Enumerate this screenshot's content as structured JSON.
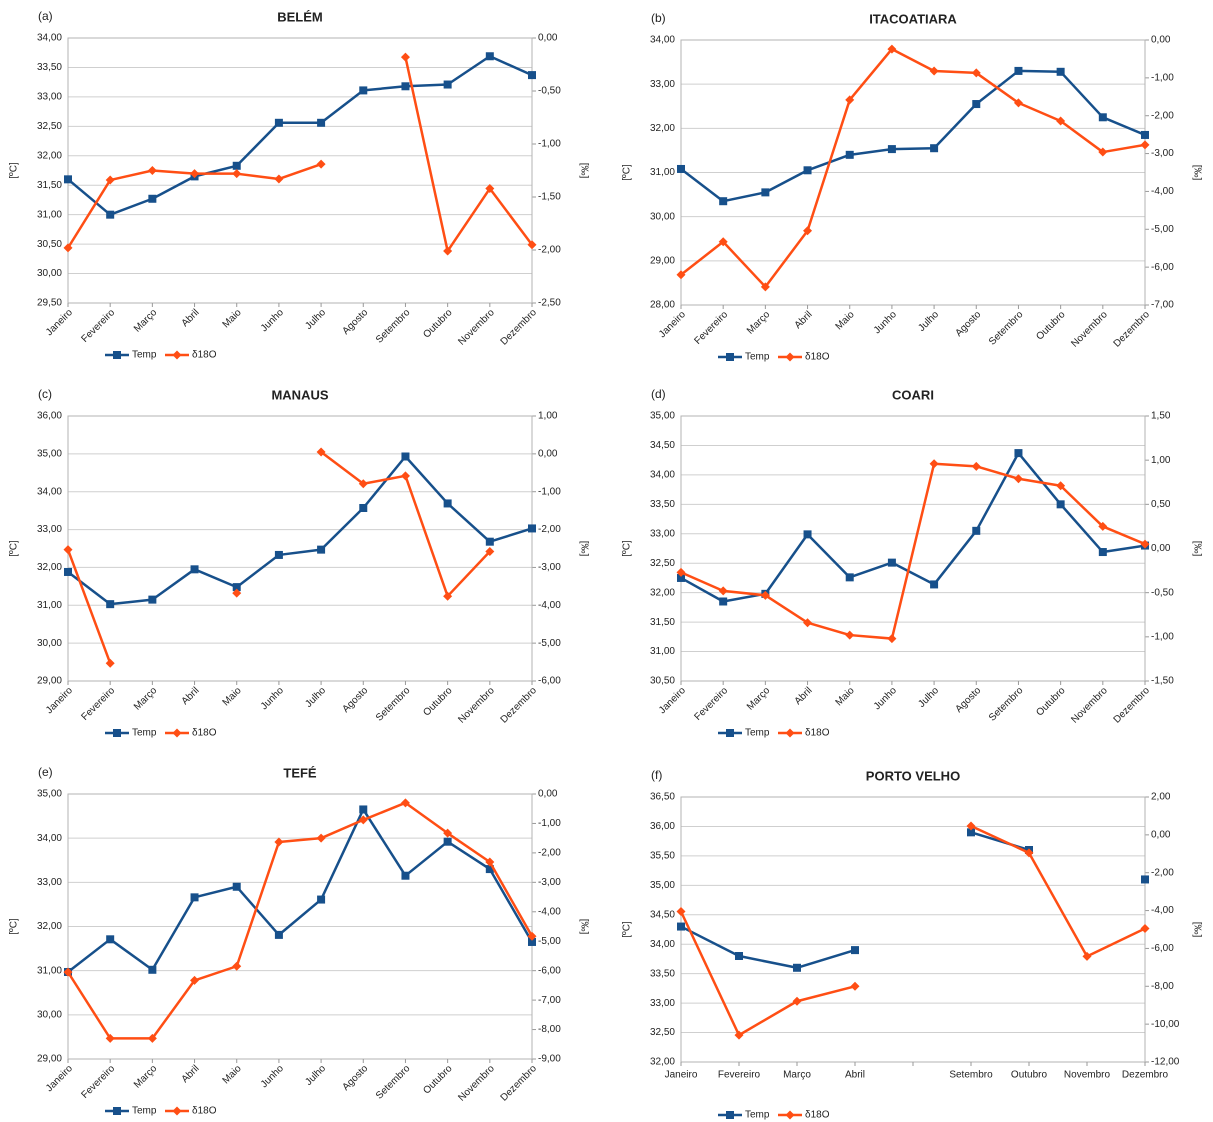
{
  "chart_data": [
    {
      "type": "line",
      "panel": "(a)",
      "title": "BELÉM",
      "ylabel": "[ºC]",
      "y2label": "[‰]",
      "grid": true,
      "categories": [
        "Janeiro",
        "Fevereiro",
        "Março",
        "Abril",
        "Maio",
        "Junho",
        "Julho",
        "Agosto",
        "Setembro",
        "Outubro",
        "Novembro",
        "Dezembro"
      ],
      "series": [
        {
          "name": "Temp",
          "color": "#17508b",
          "marker": "square",
          "values": [
            31.6,
            31.0,
            31.27,
            31.65,
            31.83,
            32.56,
            32.56,
            33.11,
            33.18,
            33.21,
            33.69,
            33.37
          ]
        },
        {
          "name": "δ18O",
          "color": "#ff4e14",
          "marker": "diamond",
          "axis": "y2",
          "values": [
            -1.98,
            -1.34,
            -1.25,
            -1.28,
            -1.28,
            -1.33,
            -1.19,
            null,
            -0.18,
            -2.01,
            -1.42,
            -1.95
          ]
        }
      ],
      "ylim": [
        29.5,
        34
      ],
      "yticks": [
        {
          "value": 29.5,
          "label": "29,50"
        },
        {
          "value": 30,
          "label": "30,00"
        },
        {
          "value": 30.5,
          "label": "30,50"
        },
        {
          "value": 31,
          "label": "31,00"
        },
        {
          "value": 31.5,
          "label": "31,50"
        },
        {
          "value": 32,
          "label": "32,00"
        },
        {
          "value": 32.5,
          "label": "32,50"
        },
        {
          "value": 33,
          "label": "33,00"
        },
        {
          "value": 33.5,
          "label": "33,50"
        },
        {
          "value": 34,
          "label": "34,00"
        }
      ],
      "y2lim": [
        -2.5,
        0
      ],
      "y2ticks": [
        {
          "value": -2.5,
          "label": "-2,50"
        },
        {
          "value": -2,
          "label": "-2,00"
        },
        {
          "value": -1.5,
          "label": "-1,50"
        },
        {
          "value": -1,
          "label": "-1,00"
        },
        {
          "value": -0.5,
          "label": "-0,50"
        },
        {
          "value": 0,
          "label": "0,00"
        }
      ]
    },
    {
      "type": "line",
      "panel": "(b)",
      "title": "ITACOATIARA",
      "ylabel": "[ºC]",
      "y2label": "[‰]",
      "grid": true,
      "categories": [
        "Janeiro",
        "Fevereiro",
        "Março",
        "Abril",
        "Maio",
        "Junho",
        "Julho",
        "Agosto",
        "Setembro",
        "Outubro",
        "Novembro",
        "Dezembro"
      ],
      "series": [
        {
          "name": "Temp",
          "color": "#17508b",
          "marker": "square",
          "values": [
            31.08,
            30.35,
            30.55,
            31.05,
            31.4,
            31.53,
            31.55,
            32.55,
            33.3,
            33.28,
            32.25,
            31.85
          ]
        },
        {
          "name": "δ18O",
          "color": "#ff4e14",
          "marker": "diamond",
          "axis": "y2",
          "values": [
            -6.2,
            -5.33,
            -6.52,
            -5.04,
            -1.58,
            -0.24,
            -0.82,
            -0.87,
            -1.66,
            -2.14,
            -2.96,
            -2.77
          ]
        }
      ],
      "ylim": [
        28,
        34
      ],
      "yticks": [
        {
          "value": 28,
          "label": "28,00"
        },
        {
          "value": 29,
          "label": "29,00"
        },
        {
          "value": 30,
          "label": "30,00"
        },
        {
          "value": 31,
          "label": "31,00"
        },
        {
          "value": 32,
          "label": "32,00"
        },
        {
          "value": 33,
          "label": "33,00"
        },
        {
          "value": 34,
          "label": "34,00"
        }
      ],
      "y2lim": [
        -7,
        0
      ],
      "y2ticks": [
        {
          "value": -7,
          "label": "-7,00"
        },
        {
          "value": -6,
          "label": "-6,00"
        },
        {
          "value": -5,
          "label": "-5,00"
        },
        {
          "value": -4,
          "label": "-4,00"
        },
        {
          "value": -3,
          "label": "-3,00"
        },
        {
          "value": -2,
          "label": "-2,00"
        },
        {
          "value": -1,
          "label": "-1,00"
        },
        {
          "value": 0,
          "label": "0,00"
        }
      ]
    },
    {
      "type": "line",
      "panel": "(c)",
      "title": "MANAUS",
      "ylabel": "[ºC]",
      "y2label": "[‰]",
      "grid": true,
      "categories": [
        "Janeiro",
        "Fevereiro",
        "Março",
        "Abril",
        "Maio",
        "Junho",
        "Julho",
        "Agosto",
        "Setembro",
        "Outubro",
        "Novembro",
        "Dezembro"
      ],
      "series": [
        {
          "name": "Temp",
          "color": "#17508b",
          "marker": "square",
          "values": [
            31.88,
            31.03,
            31.15,
            31.95,
            31.48,
            32.33,
            32.47,
            33.57,
            34.93,
            33.69,
            32.68,
            33.03
          ]
        },
        {
          "name": "δ18O",
          "color": "#ff4e14",
          "marker": "diamond",
          "axis": "y2",
          "values": [
            -2.53,
            -5.53,
            null,
            null,
            -3.68,
            null,
            0.05,
            -0.79,
            -0.58,
            -3.76,
            -2.58,
            null
          ]
        }
      ],
      "ylim": [
        29,
        36
      ],
      "yticks": [
        {
          "value": 29,
          "label": "29,00"
        },
        {
          "value": 30,
          "label": "30,00"
        },
        {
          "value": 31,
          "label": "31,00"
        },
        {
          "value": 32,
          "label": "32,00"
        },
        {
          "value": 33,
          "label": "33,00"
        },
        {
          "value": 34,
          "label": "34,00"
        },
        {
          "value": 35,
          "label": "35,00"
        },
        {
          "value": 36,
          "label": "36,00"
        }
      ],
      "y2lim": [
        -6,
        1
      ],
      "y2ticks": [
        {
          "value": -6,
          "label": "-6,00"
        },
        {
          "value": -5,
          "label": "-5,00"
        },
        {
          "value": -4,
          "label": "-4,00"
        },
        {
          "value": -3,
          "label": "-3,00"
        },
        {
          "value": -2,
          "label": "-2,00"
        },
        {
          "value": -1,
          "label": "-1,00"
        },
        {
          "value": 0,
          "label": "0,00"
        },
        {
          "value": 1,
          "label": "1,00"
        }
      ]
    },
    {
      "type": "line",
      "panel": "(d)",
      "title": "COARI",
      "ylabel": "[ºC]",
      "y2label": "[‰]",
      "grid": true,
      "categories": [
        "Janeiro",
        "Fevereiro",
        "Março",
        "Abril",
        "Maio",
        "Junho",
        "Julho",
        "Agosto",
        "Setembro",
        "Outubro",
        "Novembro",
        "Dezembro"
      ],
      "series": [
        {
          "name": "Temp",
          "color": "#17508b",
          "marker": "square",
          "values": [
            32.25,
            31.85,
            31.98,
            32.99,
            32.26,
            32.51,
            32.14,
            33.05,
            34.37,
            33.5,
            32.69,
            32.8
          ]
        },
        {
          "name": "δ18O",
          "color": "#ff4e14",
          "marker": "diamond",
          "axis": "y2",
          "values": [
            -0.27,
            -0.48,
            -0.53,
            -0.84,
            -0.98,
            -1.02,
            0.96,
            0.93,
            0.79,
            0.71,
            0.25,
            0.05
          ]
        }
      ],
      "ylim": [
        30.5,
        35
      ],
      "yticks": [
        {
          "value": 30.5,
          "label": "30,50"
        },
        {
          "value": 31,
          "label": "31,00"
        },
        {
          "value": 31.5,
          "label": "31,50"
        },
        {
          "value": 32,
          "label": "32,00"
        },
        {
          "value": 32.5,
          "label": "32,50"
        },
        {
          "value": 33,
          "label": "33,00"
        },
        {
          "value": 33.5,
          "label": "33,50"
        },
        {
          "value": 34,
          "label": "34,00"
        },
        {
          "value": 34.5,
          "label": "34,50"
        },
        {
          "value": 35,
          "label": "35,00"
        }
      ],
      "y2lim": [
        -1.5,
        1.5
      ],
      "y2ticks": [
        {
          "value": -1.5,
          "label": "-1,50"
        },
        {
          "value": -1,
          "label": "-1,00"
        },
        {
          "value": -0.5,
          "label": "-0,50"
        },
        {
          "value": 0,
          "label": "0,00"
        },
        {
          "value": 0.5,
          "label": "0,50"
        },
        {
          "value": 1,
          "label": "1,00"
        },
        {
          "value": 1.5,
          "label": "1,50"
        }
      ]
    },
    {
      "type": "line",
      "panel": "(e)",
      "title": "TEFÉ",
      "ylabel": "[ºC]",
      "y2label": "[‰]",
      "grid": true,
      "categories": [
        "Janeiro",
        "Fevereiro",
        "Março",
        "Abril",
        "Maio",
        "Junho",
        "Julho",
        "Agosto",
        "Setembro",
        "Outubro",
        "Novembro",
        "Dezembro"
      ],
      "series": [
        {
          "name": "Temp",
          "color": "#17508b",
          "marker": "square",
          "values": [
            30.97,
            31.71,
            31.02,
            32.66,
            32.9,
            31.81,
            32.61,
            34.65,
            33.15,
            33.92,
            33.3,
            31.65
          ]
        },
        {
          "name": "δ18O",
          "color": "#ff4e14",
          "marker": "diamond",
          "axis": "y2",
          "values": [
            -6.05,
            -8.3,
            -8.3,
            -6.33,
            -5.85,
            -1.63,
            -1.5,
            -0.88,
            -0.3,
            -1.33,
            -2.31,
            -4.83
          ]
        }
      ],
      "ylim": [
        29,
        35
      ],
      "yticks": [
        {
          "value": 29,
          "label": "29,00"
        },
        {
          "value": 30,
          "label": "30,00"
        },
        {
          "value": 31,
          "label": "31,00"
        },
        {
          "value": 32,
          "label": "32,00"
        },
        {
          "value": 33,
          "label": "33,00"
        },
        {
          "value": 34,
          "label": "34,00"
        },
        {
          "value": 35,
          "label": "35,00"
        }
      ],
      "y2lim": [
        -9,
        0
      ],
      "y2ticks": [
        {
          "value": -9,
          "label": "-9,00"
        },
        {
          "value": -8,
          "label": "-8,00"
        },
        {
          "value": -7,
          "label": "-7,00"
        },
        {
          "value": -6,
          "label": "-6,00"
        },
        {
          "value": -5,
          "label": "-5,00"
        },
        {
          "value": -4,
          "label": "-4,00"
        },
        {
          "value": -3,
          "label": "-3,00"
        },
        {
          "value": -2,
          "label": "-2,00"
        },
        {
          "value": -1,
          "label": "-1,00"
        },
        {
          "value": 0,
          "label": "0,00"
        }
      ]
    },
    {
      "type": "line",
      "panel": "(f)",
      "title": "PORTO VELHO",
      "ylabel": "[ºC]",
      "y2label": "[‰]",
      "grid": true,
      "categories": [
        "Janeiro",
        "Fevereiro",
        "Março",
        "Abril",
        null,
        "Setembro",
        "Outubro",
        "Novembro",
        "Dezembro"
      ],
      "series": [
        {
          "name": "Temp",
          "color": "#17508b",
          "marker": "square",
          "values": [
            34.3,
            33.8,
            33.6,
            33.9,
            null,
            35.9,
            35.6,
            null,
            35.1
          ]
        },
        {
          "name": "δ18O",
          "color": "#ff4e14",
          "marker": "diamond",
          "axis": "y2",
          "values": [
            -4.05,
            -10.58,
            -8.79,
            -8.0,
            null,
            0.47,
            -0.95,
            -6.42,
            -4.95
          ]
        }
      ],
      "ylim": [
        32,
        36.5
      ],
      "yticks": [
        {
          "value": 32,
          "label": "32,00"
        },
        {
          "value": 32.5,
          "label": "32,50"
        },
        {
          "value": 33,
          "label": "33,00"
        },
        {
          "value": 33.5,
          "label": "33,50"
        },
        {
          "value": 34,
          "label": "34,00"
        },
        {
          "value": 34.5,
          "label": "34,50"
        },
        {
          "value": 35,
          "label": "35,00"
        },
        {
          "value": 35.5,
          "label": "35,50"
        },
        {
          "value": 36,
          "label": "36,00"
        },
        {
          "value": 36.5,
          "label": "36,50"
        }
      ],
      "y2lim": [
        -12,
        2
      ],
      "y2ticks": [
        {
          "value": -12,
          "label": "-12,00"
        },
        {
          "value": -10,
          "label": "-10,00"
        },
        {
          "value": -8,
          "label": "-8,00"
        },
        {
          "value": -6,
          "label": "-6,00"
        },
        {
          "value": -4,
          "label": "-4,00"
        },
        {
          "value": -2,
          "label": "-2,00"
        },
        {
          "value": 0,
          "label": "0,00"
        },
        {
          "value": 2,
          "label": "2,00"
        }
      ]
    }
  ]
}
